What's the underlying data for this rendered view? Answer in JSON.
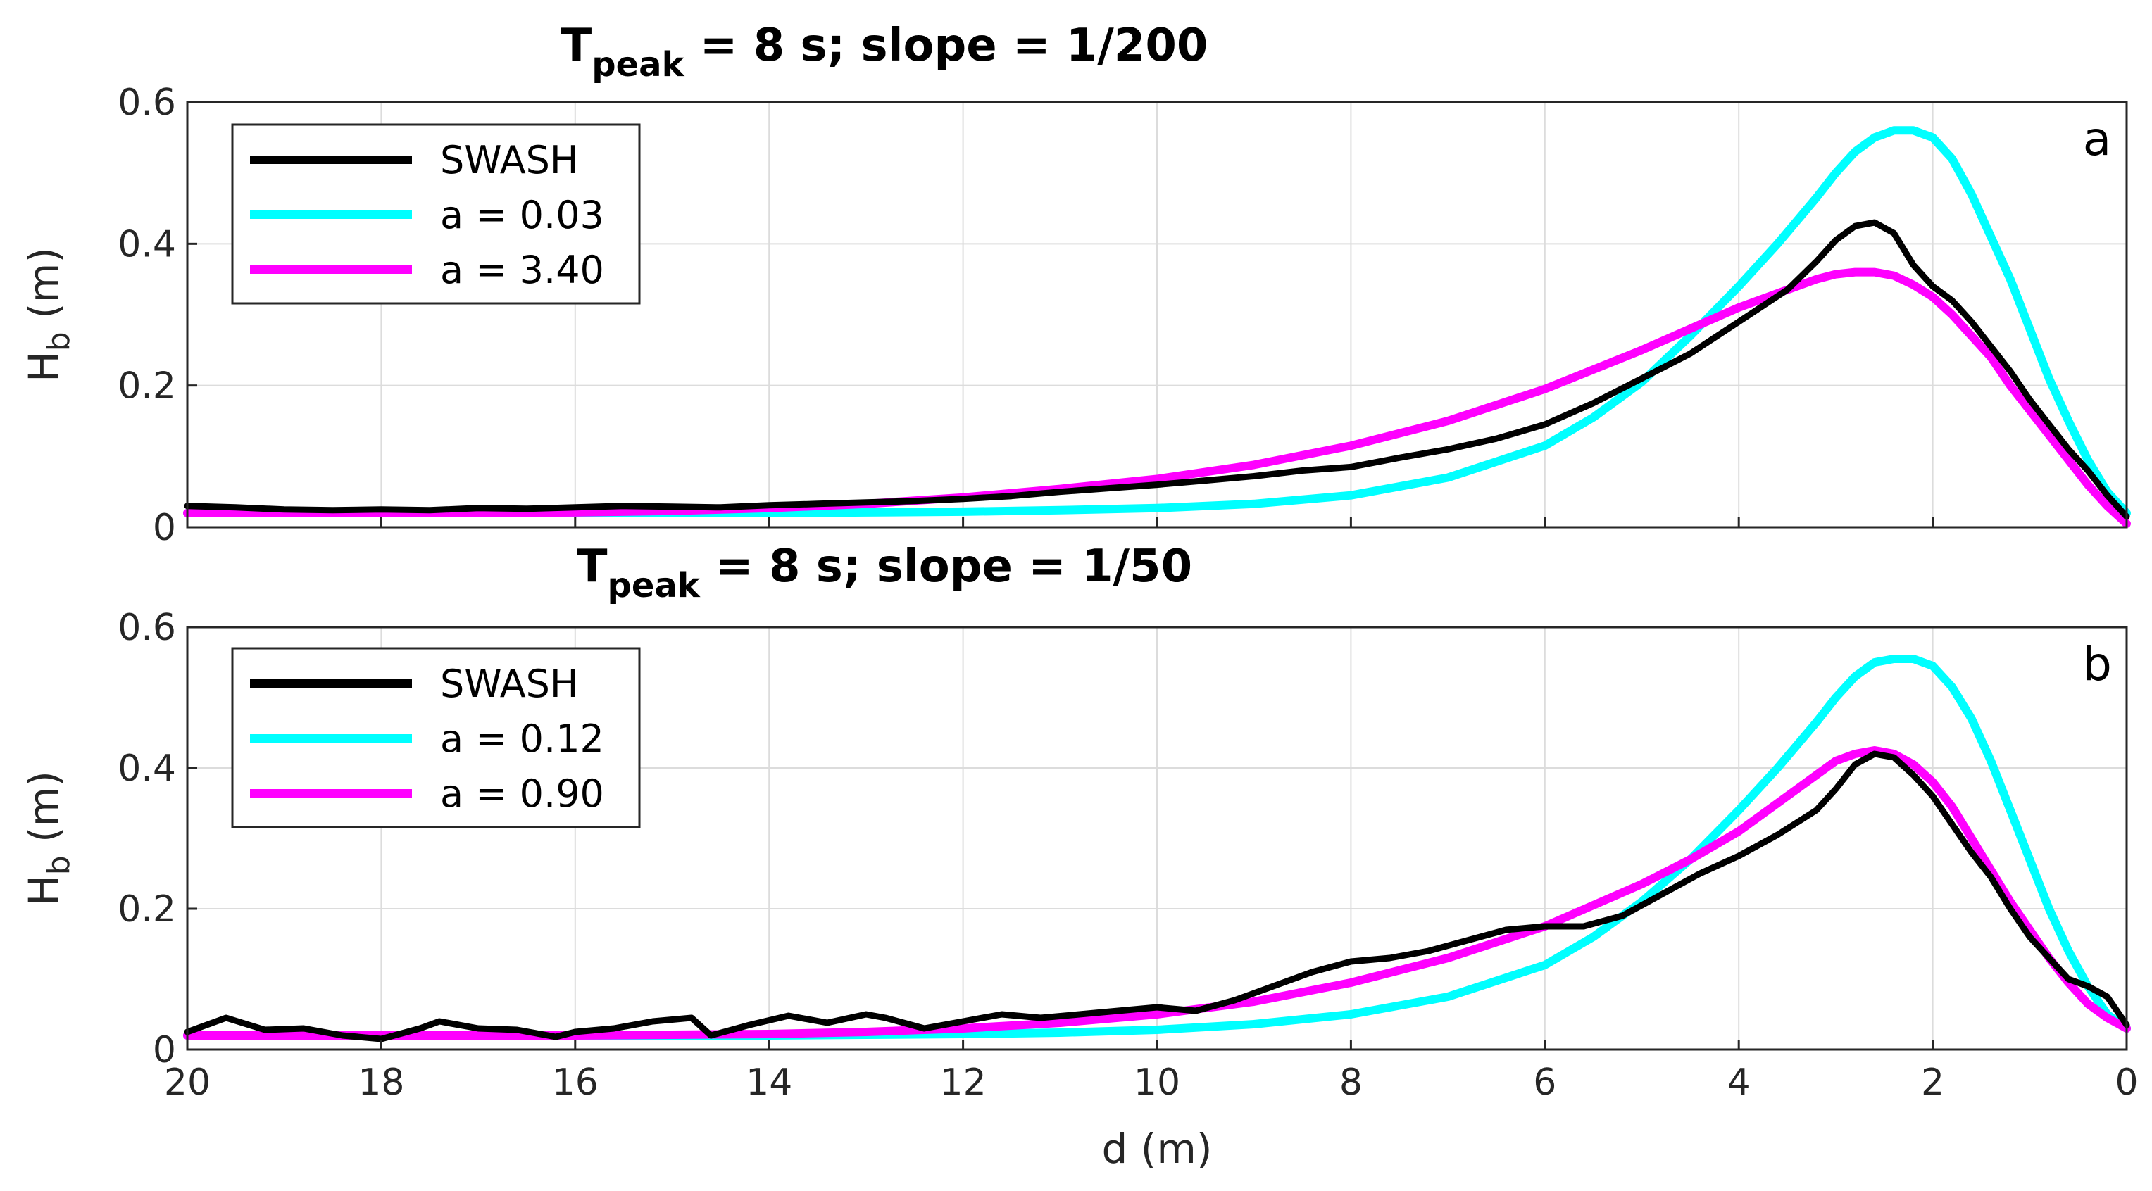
{
  "colors": {
    "swash": "#000000",
    "cyan": "#00FFFF",
    "magenta": "#FF00FF"
  },
  "chart_data": [
    {
      "type": "line",
      "panel_label": "a",
      "title": {
        "main": "T",
        "subscript": "peak",
        "rest": " = 8 s; slope = 1/200"
      },
      "xlabel": "",
      "ylabel": {
        "main": "H",
        "subscript": "b",
        "rest": " (m)"
      },
      "xlim": [
        20,
        0
      ],
      "ylim": [
        0,
        0.6
      ],
      "yticks": [
        "0",
        "0.2",
        "0.4",
        "0.6"
      ],
      "xticks": [],
      "legend_position": "top-left",
      "series": [
        {
          "name": "SWASH",
          "color": "#000000",
          "x": [
            20,
            19.5,
            19,
            18.5,
            18,
            17.5,
            17,
            16.5,
            16,
            15.5,
            15,
            14.5,
            14,
            13.5,
            13,
            12.5,
            12,
            11.5,
            11,
            10.5,
            10,
            9.5,
            9,
            8.5,
            8,
            7.5,
            7,
            6.5,
            6,
            5.5,
            5,
            4.5,
            4,
            3.5,
            3.2,
            3,
            2.8,
            2.6,
            2.4,
            2.2,
            2,
            1.8,
            1.6,
            1.4,
            1.2,
            1,
            0.8,
            0.6,
            0.4,
            0.2,
            0
          ],
          "y": [
            0.03,
            0.028,
            0.025,
            0.024,
            0.025,
            0.024,
            0.027,
            0.026,
            0.028,
            0.03,
            0.029,
            0.028,
            0.031,
            0.033,
            0.035,
            0.037,
            0.04,
            0.044,
            0.05,
            0.055,
            0.06,
            0.066,
            0.072,
            0.08,
            0.085,
            0.098,
            0.11,
            0.125,
            0.145,
            0.175,
            0.21,
            0.245,
            0.29,
            0.335,
            0.375,
            0.405,
            0.425,
            0.43,
            0.415,
            0.37,
            0.34,
            0.32,
            0.29,
            0.255,
            0.22,
            0.18,
            0.145,
            0.11,
            0.08,
            0.045,
            0.015
          ]
        },
        {
          "name": "a = 0.03",
          "color": "#00FFFF",
          "x": [
            20,
            18,
            16,
            14,
            13,
            12,
            11,
            10,
            9,
            8,
            7,
            6,
            5.5,
            5,
            4.5,
            4,
            3.6,
            3.2,
            3,
            2.8,
            2.6,
            2.4,
            2.2,
            2,
            1.8,
            1.6,
            1.4,
            1.2,
            1,
            0.8,
            0.6,
            0.4,
            0.2,
            0
          ],
          "y": [
            0.02,
            0.02,
            0.02,
            0.02,
            0.021,
            0.022,
            0.024,
            0.027,
            0.033,
            0.045,
            0.07,
            0.115,
            0.155,
            0.205,
            0.27,
            0.34,
            0.4,
            0.465,
            0.5,
            0.53,
            0.55,
            0.56,
            0.56,
            0.55,
            0.52,
            0.47,
            0.41,
            0.35,
            0.28,
            0.21,
            0.15,
            0.095,
            0.05,
            0.02
          ]
        },
        {
          "name": "a = 3.40",
          "color": "#FF00FF",
          "x": [
            20,
            18,
            16,
            15,
            14,
            13,
            12,
            11,
            10,
            9,
            8,
            7,
            6,
            5,
            4.5,
            4,
            3.5,
            3.2,
            3,
            2.8,
            2.6,
            2.4,
            2.2,
            2,
            1.8,
            1.6,
            1.4,
            1.2,
            1,
            0.8,
            0.6,
            0.4,
            0.2,
            0
          ],
          "y": [
            0.02,
            0.02,
            0.021,
            0.023,
            0.027,
            0.033,
            0.042,
            0.054,
            0.068,
            0.088,
            0.115,
            0.15,
            0.195,
            0.25,
            0.28,
            0.31,
            0.335,
            0.35,
            0.357,
            0.36,
            0.36,
            0.355,
            0.342,
            0.325,
            0.3,
            0.27,
            0.24,
            0.2,
            0.165,
            0.13,
            0.095,
            0.06,
            0.03,
            0.005
          ]
        }
      ]
    },
    {
      "type": "line",
      "panel_label": "b",
      "title": {
        "main": "T",
        "subscript": "peak",
        "rest": " = 8 s; slope = 1/50"
      },
      "xlabel": "d (m)",
      "ylabel": {
        "main": "H",
        "subscript": "b",
        "rest": " (m)"
      },
      "xlim": [
        20,
        0
      ],
      "ylim": [
        0,
        0.6
      ],
      "yticks": [
        "0",
        "0.2",
        "0.4",
        "0.6"
      ],
      "xticks": [
        "20",
        "18",
        "16",
        "14",
        "12",
        "10",
        "8",
        "6",
        "4",
        "2",
        "0"
      ],
      "legend_position": "top-left",
      "series": [
        {
          "name": "SWASH",
          "color": "#000000",
          "x": [
            20,
            19.6,
            19.2,
            18.8,
            18.4,
            18,
            17.6,
            17.4,
            17,
            16.6,
            16.2,
            16,
            15.6,
            15.2,
            14.8,
            14.6,
            14.2,
            13.8,
            13.4,
            13,
            12.8,
            12.4,
            12,
            11.6,
            11.2,
            10.8,
            10.4,
            10,
            9.6,
            9.2,
            8.8,
            8.4,
            8,
            7.6,
            7.2,
            6.8,
            6.4,
            6,
            5.6,
            5.2,
            4.8,
            4.4,
            4,
            3.6,
            3.2,
            3,
            2.8,
            2.6,
            2.4,
            2.2,
            2,
            1.8,
            1.6,
            1.4,
            1.2,
            1,
            0.8,
            0.6,
            0.4,
            0.2,
            0
          ],
          "y": [
            0.025,
            0.045,
            0.028,
            0.03,
            0.02,
            0.015,
            0.03,
            0.04,
            0.03,
            0.028,
            0.018,
            0.025,
            0.03,
            0.04,
            0.045,
            0.02,
            0.035,
            0.048,
            0.038,
            0.05,
            0.045,
            0.03,
            0.04,
            0.05,
            0.045,
            0.05,
            0.055,
            0.06,
            0.055,
            0.07,
            0.09,
            0.11,
            0.125,
            0.13,
            0.14,
            0.155,
            0.17,
            0.175,
            0.175,
            0.19,
            0.22,
            0.25,
            0.275,
            0.305,
            0.34,
            0.37,
            0.405,
            0.42,
            0.415,
            0.39,
            0.36,
            0.32,
            0.28,
            0.245,
            0.2,
            0.16,
            0.13,
            0.1,
            0.09,
            0.075,
            0.035
          ]
        },
        {
          "name": "a = 0.12",
          "color": "#00FFFF",
          "x": [
            20,
            18,
            16,
            14,
            13,
            12,
            11,
            10,
            9,
            8,
            7,
            6,
            5.5,
            5,
            4.5,
            4,
            3.6,
            3.2,
            3,
            2.8,
            2.6,
            2.4,
            2.2,
            2,
            1.8,
            1.6,
            1.4,
            1.2,
            1,
            0.8,
            0.6,
            0.4,
            0.2,
            0
          ],
          "y": [
            0.02,
            0.02,
            0.02,
            0.02,
            0.021,
            0.022,
            0.024,
            0.028,
            0.036,
            0.05,
            0.075,
            0.12,
            0.16,
            0.21,
            0.27,
            0.34,
            0.4,
            0.465,
            0.5,
            0.53,
            0.55,
            0.555,
            0.555,
            0.545,
            0.515,
            0.47,
            0.41,
            0.34,
            0.27,
            0.2,
            0.14,
            0.09,
            0.05,
            0.03
          ]
        },
        {
          "name": "a = 0.90",
          "color": "#FF00FF",
          "x": [
            20,
            18,
            16,
            14,
            13,
            12,
            11,
            10,
            9,
            8,
            7,
            6,
            5,
            4.5,
            4,
            3.6,
            3.2,
            3,
            2.8,
            2.6,
            2.4,
            2.2,
            2,
            1.8,
            1.6,
            1.4,
            1.2,
            1,
            0.8,
            0.6,
            0.4,
            0.2,
            0
          ],
          "y": [
            0.02,
            0.02,
            0.02,
            0.022,
            0.025,
            0.03,
            0.038,
            0.05,
            0.068,
            0.095,
            0.13,
            0.175,
            0.235,
            0.27,
            0.31,
            0.35,
            0.39,
            0.41,
            0.42,
            0.425,
            0.42,
            0.405,
            0.38,
            0.345,
            0.3,
            0.255,
            0.21,
            0.17,
            0.13,
            0.095,
            0.065,
            0.045,
            0.03
          ]
        }
      ]
    }
  ]
}
